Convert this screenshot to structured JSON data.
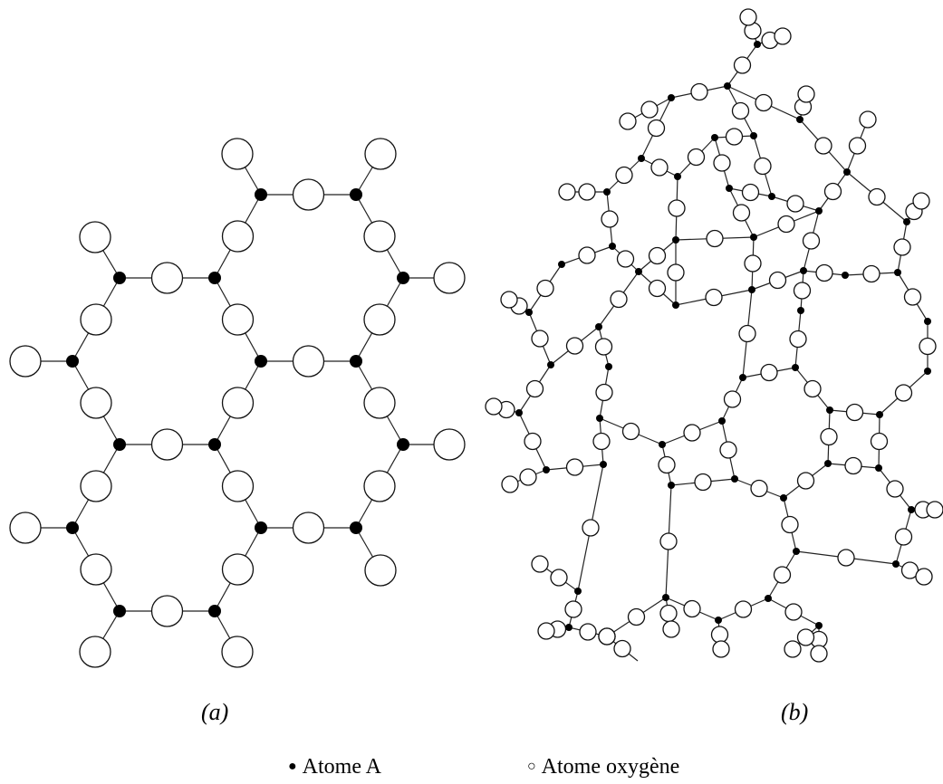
{
  "figure_a": {
    "caption": "(a)",
    "description": "crystalline",
    "a_atoms": [
      [
        288,
        215
      ],
      [
        393,
        215
      ],
      [
        132,
        307
      ],
      [
        237,
        307
      ],
      [
        445,
        307
      ],
      [
        80,
        399
      ],
      [
        288,
        399
      ],
      [
        393,
        399
      ],
      [
        132,
        491
      ],
      [
        237,
        491
      ],
      [
        445,
        491
      ],
      [
        80,
        583
      ],
      [
        288,
        583
      ],
      [
        393,
        583
      ],
      [
        132,
        675
      ],
      [
        237,
        675
      ]
    ],
    "oxygens": [
      [
        288,
        215,
        393,
        215
      ],
      [
        132,
        307,
        237,
        307
      ],
      [
        80,
        399,
        132,
        307
      ],
      [
        237,
        307,
        288,
        215
      ],
      [
        288,
        399,
        237,
        307
      ],
      [
        393,
        215,
        445,
        307
      ],
      [
        393,
        399,
        445,
        307
      ],
      [
        288,
        399,
        393,
        399
      ],
      [
        132,
        491,
        80,
        399
      ],
      [
        237,
        491,
        288,
        399
      ],
      [
        132,
        491,
        237,
        491
      ],
      [
        445,
        491,
        393,
        399
      ],
      [
        80,
        583,
        132,
        491
      ],
      [
        288,
        583,
        237,
        491
      ],
      [
        393,
        583,
        445,
        491
      ],
      [
        132,
        675,
        80,
        583
      ],
      [
        237,
        675,
        288,
        583
      ],
      [
        132,
        675,
        237,
        675
      ],
      [
        288,
        583,
        393,
        583
      ]
    ],
    "terminals": [
      [
        288,
        215,
        262,
        170
      ],
      [
        393,
        215,
        420,
        170
      ],
      [
        132,
        307,
        105,
        262
      ],
      [
        445,
        307,
        496,
        307
      ],
      [
        80,
        399,
        28,
        399
      ],
      [
        445,
        491,
        496,
        491
      ],
      [
        80,
        583,
        28,
        583
      ],
      [
        393,
        583,
        420,
        630
      ],
      [
        132,
        675,
        105,
        720
      ],
      [
        237,
        675,
        262,
        720
      ]
    ]
  },
  "figure_b": {
    "caption": "(b)",
    "description": "amorphous",
    "a_atoms": [
      [
        836,
        49
      ],
      [
        803,
        95
      ],
      [
        741,
        108
      ],
      [
        883,
        132
      ],
      [
        832,
        150
      ],
      [
        708,
        175
      ],
      [
        789,
        152
      ],
      [
        670,
        212
      ],
      [
        748,
        195
      ],
      [
        805,
        208
      ],
      [
        852,
        217
      ],
      [
        935,
        190
      ],
      [
        676,
        272
      ],
      [
        746,
        265
      ],
      [
        832,
        262
      ],
      [
        904,
        233
      ],
      [
        1001,
        245
      ],
      [
        620,
        292
      ],
      [
        705,
        300
      ],
      [
        746,
        337
      ],
      [
        830,
        320
      ],
      [
        887,
        299
      ],
      [
        933,
        304
      ],
      [
        991,
        301
      ],
      [
        584,
        345
      ],
      [
        661,
        361
      ],
      [
        884,
        343
      ],
      [
        1024,
        355
      ],
      [
        608,
        403
      ],
      [
        672,
        405
      ],
      [
        820,
        417
      ],
      [
        878,
        406
      ],
      [
        1024,
        410
      ],
      [
        573,
        456
      ],
      [
        662,
        462
      ],
      [
        731,
        491
      ],
      [
        797,
        465
      ],
      [
        916,
        453
      ],
      [
        971,
        458
      ],
      [
        603,
        519
      ],
      [
        666,
        513
      ],
      [
        741,
        536
      ],
      [
        811,
        529
      ],
      [
        865,
        550
      ],
      [
        914,
        512
      ],
      [
        970,
        517
      ],
      [
        1006,
        563
      ],
      [
        879,
        609
      ],
      [
        989,
        623
      ],
      [
        638,
        653
      ],
      [
        735,
        660
      ],
      [
        793,
        685
      ],
      [
        848,
        661
      ],
      [
        904,
        691
      ],
      [
        628,
        693
      ],
      [
        793,
        685
      ],
      [
        848,
        661
      ]
    ],
    "bonds": [
      [
        836,
        49,
        826,
        19
      ],
      [
        836,
        49,
        864,
        40
      ],
      [
        836,
        49,
        803,
        95
      ],
      [
        803,
        95,
        741,
        108
      ],
      [
        803,
        95,
        832,
        150
      ],
      [
        803,
        95,
        883,
        132
      ],
      [
        883,
        132,
        890,
        104
      ],
      [
        883,
        132,
        935,
        190
      ],
      [
        832,
        150,
        789,
        152
      ],
      [
        832,
        150,
        852,
        217
      ],
      [
        741,
        108,
        708,
        175
      ],
      [
        741,
        108,
        693,
        134
      ],
      [
        708,
        175,
        670,
        212
      ],
      [
        708,
        175,
        748,
        195
      ],
      [
        789,
        152,
        748,
        195
      ],
      [
        789,
        152,
        805,
        208
      ],
      [
        748,
        195,
        746,
        265
      ],
      [
        805,
        208,
        852,
        217
      ],
      [
        805,
        208,
        832,
        262
      ],
      [
        852,
        217,
        904,
        233
      ],
      [
        935,
        190,
        904,
        233
      ],
      [
        935,
        190,
        1001,
        245
      ],
      [
        935,
        190,
        958,
        132
      ],
      [
        670,
        212,
        676,
        272
      ],
      [
        670,
        212,
        626,
        212
      ],
      [
        676,
        272,
        620,
        292
      ],
      [
        676,
        272,
        705,
        300
      ],
      [
        746,
        265,
        705,
        300
      ],
      [
        746,
        265,
        746,
        337
      ],
      [
        746,
        265,
        832,
        262
      ],
      [
        832,
        262,
        830,
        320
      ],
      [
        832,
        262,
        904,
        233
      ],
      [
        904,
        233,
        887,
        299
      ],
      [
        1001,
        245,
        991,
        301
      ],
      [
        1001,
        245,
        1017,
        222
      ],
      [
        620,
        292,
        584,
        345
      ],
      [
        705,
        300,
        746,
        337
      ],
      [
        705,
        300,
        661,
        361
      ],
      [
        746,
        337,
        830,
        320
      ],
      [
        830,
        320,
        887,
        299
      ],
      [
        887,
        299,
        933,
        304
      ],
      [
        933,
        304,
        991,
        301
      ],
      [
        991,
        301,
        1024,
        355
      ],
      [
        584,
        345,
        608,
        403
      ],
      [
        584,
        345,
        562,
        331
      ],
      [
        661,
        361,
        608,
        403
      ],
      [
        661,
        361,
        672,
        405
      ],
      [
        830,
        320,
        820,
        417
      ],
      [
        887,
        299,
        884,
        343
      ],
      [
        884,
        343,
        878,
        406
      ],
      [
        1024,
        355,
        1024,
        410
      ],
      [
        820,
        417,
        878,
        406
      ],
      [
        820,
        417,
        797,
        465
      ],
      [
        878,
        406,
        916,
        453
      ],
      [
        608,
        403,
        573,
        456
      ],
      [
        672,
        405,
        662,
        462
      ],
      [
        573,
        456,
        603,
        519
      ],
      [
        573,
        456,
        545,
        449
      ],
      [
        662,
        462,
        731,
        491
      ],
      [
        662,
        462,
        666,
        513
      ],
      [
        731,
        491,
        797,
        465
      ],
      [
        731,
        491,
        741,
        536
      ],
      [
        797,
        465,
        811,
        529
      ],
      [
        916,
        453,
        971,
        458
      ],
      [
        971,
        458,
        1024,
        410
      ],
      [
        971,
        458,
        970,
        517
      ],
      [
        916,
        453,
        914,
        512
      ],
      [
        914,
        512,
        865,
        550
      ],
      [
        914,
        512,
        970,
        517
      ],
      [
        603,
        519,
        666,
        513
      ],
      [
        603,
        519,
        563,
        535
      ],
      [
        666,
        513,
        638,
        653
      ],
      [
        741,
        536,
        811,
        529
      ],
      [
        811,
        529,
        865,
        550
      ],
      [
        865,
        550,
        879,
        609
      ],
      [
        970,
        517,
        1006,
        563
      ],
      [
        1006,
        563,
        1032,
        563
      ],
      [
        1006,
        563,
        989,
        623
      ],
      [
        879,
        609,
        848,
        661
      ],
      [
        879,
        609,
        989,
        623
      ],
      [
        989,
        623,
        1020,
        637
      ],
      [
        741,
        536,
        735,
        660
      ],
      [
        735,
        660,
        793,
        685
      ],
      [
        793,
        685,
        848,
        661
      ],
      [
        848,
        661,
        904,
        691
      ],
      [
        638,
        653,
        628,
        693
      ],
      [
        638,
        653,
        596,
        623
      ],
      [
        628,
        693,
        670,
        703
      ],
      [
        670,
        703,
        735,
        660
      ],
      [
        628,
        693,
        603,
        697
      ],
      [
        670,
        703,
        704,
        730
      ],
      [
        793,
        685,
        796,
        717
      ],
      [
        904,
        691,
        904,
        722
      ],
      [
        904,
        691,
        875,
        717
      ],
      [
        735,
        660,
        741,
        695
      ]
    ]
  },
  "legend": {
    "a_label": "Atome A",
    "o_label": "Atome oxygène",
    "a_symbol": "●",
    "o_symbol": "○"
  }
}
